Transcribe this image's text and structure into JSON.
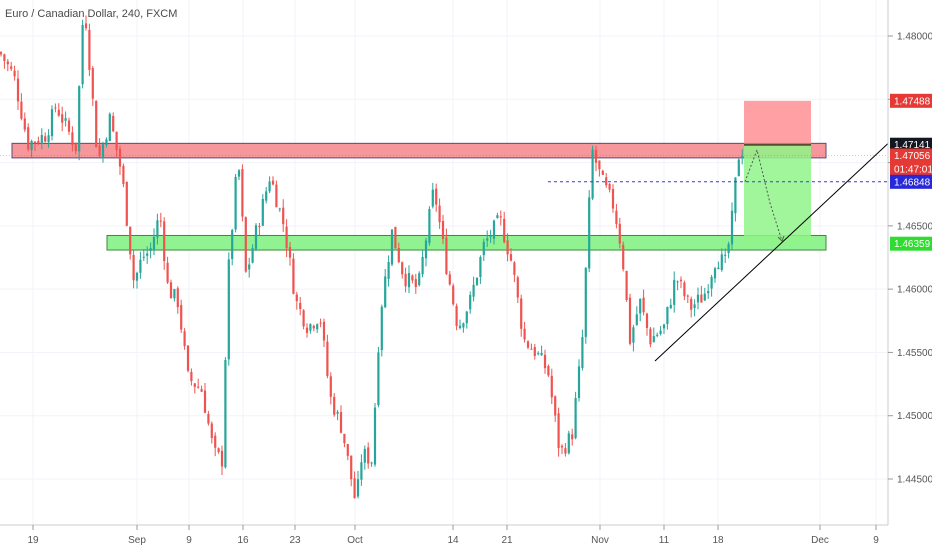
{
  "header": {
    "title": "Euro / Canadian Dollar, 240, FXCM"
  },
  "colors": {
    "up": "#26a69a",
    "down": "#ef5350",
    "resistance_zone": "#f4868a",
    "support_zone": "#7ef07e",
    "stop_box": "#ff8f95",
    "target_box": "#90f58a",
    "entry_line": "#5a4a30",
    "dashed_line": "#3b3bd6",
    "trend_line": "#000000",
    "badge_red": "#e53935",
    "badge_black": "#131722",
    "badge_blue": "#2828d8",
    "badge_green": "#2fdc2f"
  },
  "chart_data": {
    "type": "candlestick",
    "title": "Euro / Canadian Dollar, 240, FXCM",
    "x_ticks": [
      "19",
      "Sep",
      "9",
      "16",
      "23",
      "Oct",
      "14",
      "21",
      "Nov",
      "11",
      "18",
      "Dec",
      "9"
    ],
    "y_ticks": [
      "1.48000",
      "1.47500",
      "1.47000",
      "1.46500",
      "1.46000",
      "1.45500",
      "1.45000",
      "1.44500"
    ],
    "ylim": [
      1.4415,
      1.4835
    ],
    "path_points": [
      [
        0,
        1.4787
      ],
      [
        14,
        1.4768
      ],
      [
        28,
        1.4715
      ],
      [
        46,
        1.4722
      ],
      [
        56,
        1.4745
      ],
      [
        76,
        1.4712
      ],
      [
        84,
        1.483
      ],
      [
        98,
        1.47
      ],
      [
        110,
        1.4735
      ],
      [
        122,
        1.469
      ],
      [
        134,
        1.4605
      ],
      [
        142,
        1.4625
      ],
      [
        150,
        1.463
      ],
      [
        160,
        1.466
      ],
      [
        168,
        1.46
      ],
      [
        178,
        1.459
      ],
      [
        188,
        1.453
      ],
      [
        202,
        1.452
      ],
      [
        214,
        1.447
      ],
      [
        222,
        1.4465
      ],
      [
        228,
        1.461
      ],
      [
        238,
        1.4705
      ],
      [
        246,
        1.461
      ],
      [
        256,
        1.4645
      ],
      [
        270,
        1.469
      ],
      [
        284,
        1.465
      ],
      [
        296,
        1.459
      ],
      [
        308,
        1.457
      ],
      [
        320,
        1.458
      ],
      [
        330,
        1.4515
      ],
      [
        342,
        1.449
      ],
      [
        356,
        1.443
      ],
      [
        362,
        1.447
      ],
      [
        372,
        1.4465
      ],
      [
        380,
        1.458
      ],
      [
        392,
        1.4645
      ],
      [
        404,
        1.461
      ],
      [
        418,
        1.46
      ],
      [
        434,
        1.468
      ],
      [
        446,
        1.462
      ],
      [
        458,
        1.457
      ],
      [
        470,
        1.459
      ],
      [
        484,
        1.4635
      ],
      [
        500,
        1.4655
      ],
      [
        512,
        1.462
      ],
      [
        524,
        1.456
      ],
      [
        536,
        1.455
      ],
      [
        548,
        1.4535
      ],
      [
        560,
        1.447
      ],
      [
        572,
        1.4485
      ],
      [
        582,
        1.4555
      ],
      [
        592,
        1.471
      ],
      [
        602,
        1.4685
      ],
      [
        614,
        1.4665
      ],
      [
        622,
        1.463
      ],
      [
        630,
        1.456
      ],
      [
        640,
        1.459
      ],
      [
        650,
        1.456
      ],
      [
        664,
        1.457
      ],
      [
        676,
        1.461
      ],
      [
        690,
        1.4585
      ],
      [
        704,
        1.4595
      ],
      [
        716,
        1.4625
      ],
      [
        726,
        1.462
      ],
      [
        732,
        1.4655
      ],
      [
        738,
        1.4705
      ],
      [
        744,
        1.4712
      ]
    ],
    "zones": [
      {
        "name": "resistance",
        "y_top": 1.47152,
        "y_bottom": 1.47037,
        "x_start": 12,
        "x_end": 826
      },
      {
        "name": "support",
        "y_top": 1.46424,
        "y_bottom": 1.46309,
        "x_start": 107,
        "x_end": 826
      }
    ],
    "position": {
      "entry": 1.47141,
      "stop": 1.47488,
      "target": 1.46359,
      "x_start": 744,
      "x_end": 811
    },
    "dashed_level": 1.46848,
    "current_price": 1.47056,
    "trend_line": {
      "x1": 655,
      "y1": 1.45432,
      "x2": 888,
      "y2": 1.47151
    },
    "projection": [
      [
        745,
        1.46848
      ],
      [
        757,
        1.471
      ],
      [
        770,
        1.4668
      ],
      [
        782,
        1.4638
      ]
    ],
    "price_labels": [
      {
        "text": "1.47488",
        "value": 1.47488,
        "style": "red"
      },
      {
        "text": "1.47141",
        "value": 1.47141,
        "style": "black"
      },
      {
        "text": "1.47056",
        "value": 1.47056,
        "style": "red"
      },
      {
        "text": "01:47:01",
        "value": 1.4695,
        "style": "red"
      },
      {
        "text": "1.46848",
        "value": 1.46848,
        "style": "blue"
      },
      {
        "text": "1.46359",
        "value": 1.46359,
        "style": "green"
      }
    ]
  }
}
